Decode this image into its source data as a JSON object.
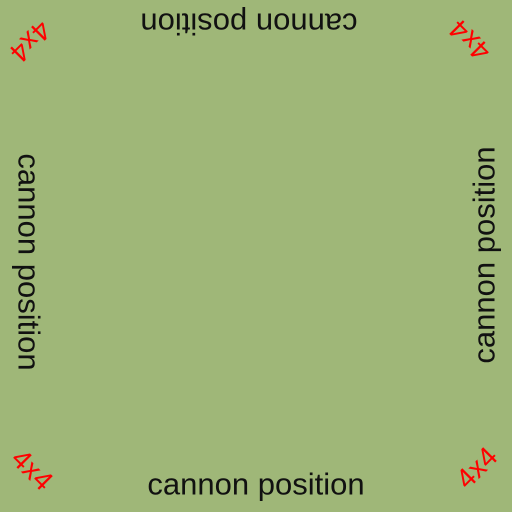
{
  "board": {
    "background_color": "#9fb778",
    "edge_text_color": "#111111",
    "corner_text_color": "#ff0000"
  },
  "edges": {
    "top": "cannon position",
    "bottom": "cannon position",
    "left": "cannon position",
    "right": "cannon position"
  },
  "corners": {
    "top_left": "4x4",
    "top_right": "4x4",
    "bottom_left": "4x4",
    "bottom_right": "4x4"
  }
}
